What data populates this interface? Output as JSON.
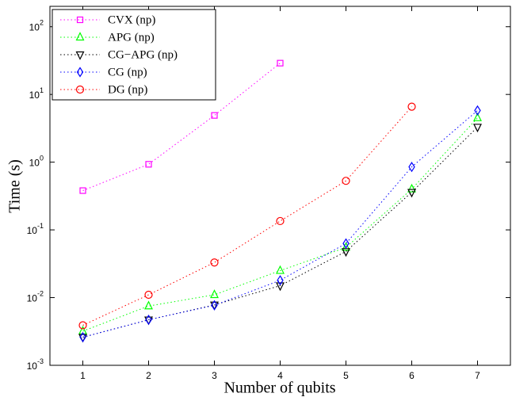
{
  "chart_data": {
    "type": "line",
    "x_label": "Number of qubits",
    "y_label": "Time (s)",
    "x": [
      1,
      2,
      3,
      4,
      5,
      6,
      7
    ],
    "series": [
      {
        "name": "CVX (np)",
        "color": "#ff00ff",
        "marker": "square",
        "values": [
          0.38,
          0.93,
          4.9,
          29,
          null,
          null,
          null
        ]
      },
      {
        "name": "APG (np)",
        "color": "#00ff00",
        "marker": "triangle-up",
        "values": [
          0.0032,
          0.0075,
          0.011,
          0.025,
          0.055,
          0.4,
          4.5
        ]
      },
      {
        "name": "CG−APG (np)",
        "color": "#000000",
        "marker": "triangle-down",
        "values": [
          0.0026,
          0.0047,
          0.0078,
          0.015,
          0.048,
          0.36,
          3.3
        ]
      },
      {
        "name": "CG (np)",
        "color": "#0000ff",
        "marker": "diamond",
        "values": [
          0.0026,
          0.0047,
          0.0077,
          0.018,
          0.063,
          0.85,
          5.8
        ]
      },
      {
        "name": "DG (np)",
        "color": "#ff0000",
        "marker": "circle",
        "values": [
          0.0039,
          0.011,
          0.033,
          0.135,
          0.53,
          6.6,
          null
        ]
      }
    ],
    "xlim": [
      0.5,
      7.5
    ],
    "xticks": [
      1,
      2,
      3,
      4,
      5,
      6,
      7
    ],
    "ylim": [
      0.001,
      200
    ],
    "log_y": true,
    "yticks": [
      {
        "value": 0.001,
        "label": "10^-3"
      },
      {
        "value": 0.01,
        "label": "10^-2"
      },
      {
        "value": 0.1,
        "label": "10^-1"
      },
      {
        "value": 1,
        "label": "10^0"
      },
      {
        "value": 10,
        "label": "10^1"
      },
      {
        "value": 100,
        "label": "10^2"
      }
    ],
    "grid": false,
    "legend": "upper-left"
  }
}
